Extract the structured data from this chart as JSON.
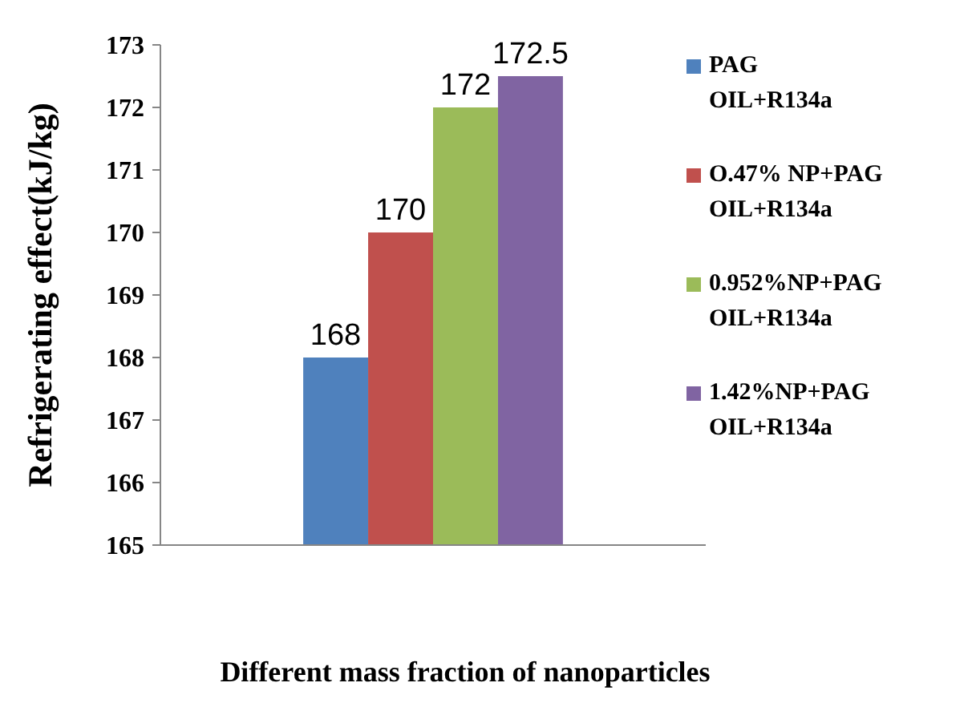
{
  "chart_data": {
    "type": "bar",
    "xlabel": "Different mass fraction of nanoparticles",
    "ylabel": "Refrigerating effect(kJ/kg)",
    "categories": [
      null
    ],
    "series": [
      {
        "name": "PAG OIL+R134a",
        "color": "#4f81bd",
        "values": [
          168
        ]
      },
      {
        "name": "O.47% NP+PAG OIL+R134a",
        "color": "#c0504d",
        "values": [
          170
        ]
      },
      {
        "name": "0.952%NP+PAG OIL+R134a",
        "color": "#9bbb59",
        "values": [
          172
        ]
      },
      {
        "name": "1.42%NP+PAG OIL+R134a",
        "color": "#8064a2",
        "values": [
          172.5
        ]
      }
    ],
    "ylim": [
      165,
      173
    ],
    "yticks": [
      165,
      166,
      167,
      168,
      169,
      170,
      171,
      172,
      173
    ],
    "grid": false,
    "legend": "right",
    "data_labels": true
  }
}
